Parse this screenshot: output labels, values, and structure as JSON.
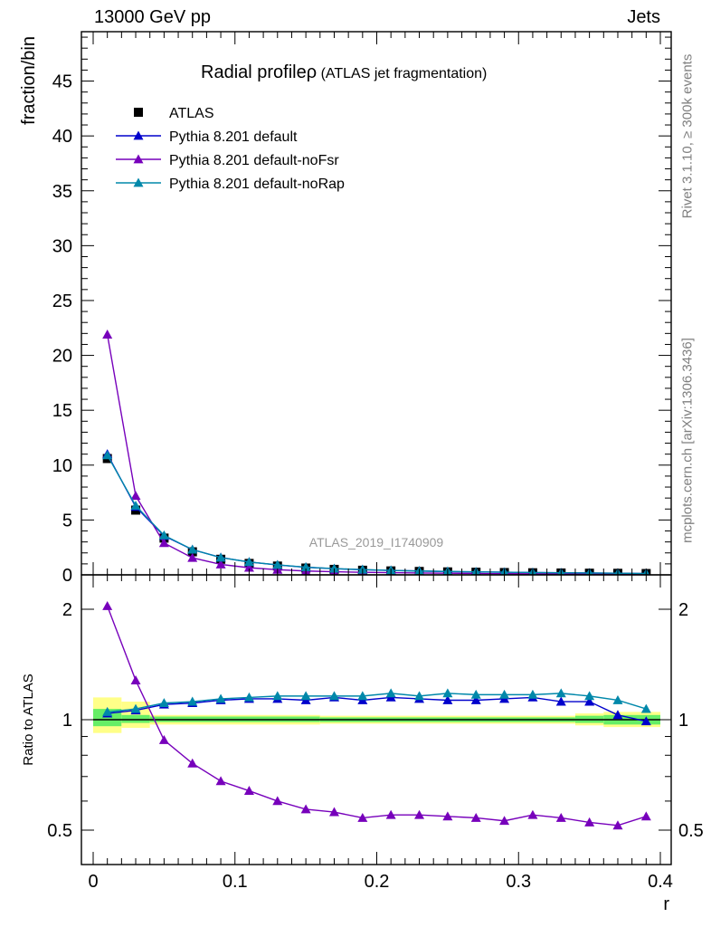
{
  "header": {
    "left": "13000 GeV pp",
    "right": "Jets"
  },
  "side_labels": {
    "top": "Rivet 3.1.10, ≥ 300k events",
    "bottom": "mcplots.cern.ch [arXiv:1306.3436]"
  },
  "chart_data": [
    {
      "type": "line",
      "title": "Radial profile ρ (ATLAS jet fragmentation)",
      "title_main": "Radial profile",
      "title_symbol": "ρ",
      "title_sub": "(ATLAS jet fragmentation)",
      "watermark": "ATLAS_2019_I1740909",
      "ylabel": "fraction/bin",
      "xlabel": "",
      "xlim": [
        -0.01,
        0.4
      ],
      "ylim": [
        0,
        49.5
      ],
      "yticks": [
        0,
        5,
        10,
        15,
        20,
        25,
        30,
        35,
        40,
        45
      ],
      "legend_position": "top-left",
      "x": [
        0.01,
        0.03,
        0.05,
        0.07,
        0.09,
        0.11,
        0.13,
        0.15,
        0.17,
        0.19,
        0.21,
        0.23,
        0.25,
        0.27,
        0.29,
        0.31,
        0.33,
        0.35,
        0.37,
        0.39
      ],
      "series": [
        {
          "name": "ATLAS",
          "color": "#000000",
          "marker": "square",
          "values": [
            10.6,
            5.9,
            3.35,
            2.1,
            1.42,
            1.04,
            0.8,
            0.62,
            0.5,
            0.42,
            0.36,
            0.31,
            0.27,
            0.24,
            0.21,
            0.19,
            0.17,
            0.15,
            0.14,
            0.12
          ]
        },
        {
          "name": "Pythia 8.201 default",
          "color": "#0000cc",
          "marker": "triangle",
          "values": [
            11.0,
            6.2,
            3.55,
            2.3,
            1.58,
            1.17,
            0.9,
            0.69,
            0.56,
            0.47,
            0.4,
            0.35,
            0.3,
            0.27,
            0.24,
            0.21,
            0.19,
            0.17,
            0.15,
            0.12
          ]
        },
        {
          "name": "Pythia 8.201 default-noFsr",
          "color": "#7700bb",
          "marker": "triangle",
          "values": [
            21.9,
            7.2,
            2.9,
            1.55,
            0.95,
            0.65,
            0.47,
            0.35,
            0.28,
            0.23,
            0.2,
            0.17,
            0.15,
            0.13,
            0.11,
            0.1,
            0.09,
            0.08,
            0.07,
            0.065
          ]
        },
        {
          "name": "Pythia 8.201 default-noRap",
          "color": "#0088aa",
          "marker": "triangle",
          "values": [
            10.9,
            6.3,
            3.6,
            2.3,
            1.57,
            1.17,
            0.91,
            0.7,
            0.57,
            0.48,
            0.41,
            0.35,
            0.31,
            0.27,
            0.24,
            0.21,
            0.19,
            0.17,
            0.15,
            0.12
          ]
        }
      ]
    },
    {
      "type": "line",
      "ylabel": "Ratio to ATLAS",
      "xlabel": "r",
      "xlim": [
        -0.01,
        0.4
      ],
      "ylim": [
        0.36,
        2.28
      ],
      "yticks": [
        0.5,
        1,
        2
      ],
      "xticks": [
        0,
        0.1,
        0.2,
        0.3,
        0.4
      ],
      "reference": 1,
      "x": [
        0.01,
        0.03,
        0.05,
        0.07,
        0.09,
        0.11,
        0.13,
        0.15,
        0.17,
        0.19,
        0.21,
        0.23,
        0.25,
        0.27,
        0.29,
        0.31,
        0.33,
        0.35,
        0.37,
        0.39
      ],
      "uncertainty_band": {
        "inner_color": "#66ee66",
        "outer_color": "#ffff88",
        "bins": [
          [
            0.0,
            0.02
          ],
          [
            0.02,
            0.04
          ],
          [
            0.04,
            0.16
          ],
          [
            0.16,
            0.34
          ],
          [
            0.34,
            0.36
          ],
          [
            0.36,
            0.4
          ]
        ],
        "inner": [
          [
            0.96,
            1.07
          ],
          [
            0.98,
            1.03
          ],
          [
            0.985,
            1.02
          ],
          [
            0.985,
            1.015
          ],
          [
            0.98,
            1.025
          ],
          [
            0.97,
            1.03
          ]
        ],
        "outer": [
          [
            0.92,
            1.15
          ],
          [
            0.95,
            1.12
          ],
          [
            0.97,
            1.03
          ],
          [
            0.975,
            1.025
          ],
          [
            0.965,
            1.04
          ],
          [
            0.955,
            1.05
          ]
        ]
      },
      "series": [
        {
          "name": "Pythia 8.201 default",
          "color": "#0000cc",
          "values": [
            1.04,
            1.06,
            1.1,
            1.11,
            1.13,
            1.14,
            1.14,
            1.13,
            1.15,
            1.13,
            1.15,
            1.14,
            1.13,
            1.13,
            1.14,
            1.15,
            1.12,
            1.12,
            1.03,
            0.99
          ]
        },
        {
          "name": "Pythia 8.201 default-noFsr",
          "color": "#7700bb",
          "values": [
            2.04,
            1.28,
            0.88,
            0.76,
            0.68,
            0.64,
            0.6,
            0.57,
            0.56,
            0.54,
            0.55,
            0.55,
            0.545,
            0.54,
            0.53,
            0.55,
            0.54,
            0.525,
            0.515,
            0.545
          ]
        },
        {
          "name": "Pythia 8.201 default-noRap",
          "color": "#0088aa",
          "values": [
            1.05,
            1.07,
            1.11,
            1.12,
            1.14,
            1.15,
            1.16,
            1.16,
            1.16,
            1.16,
            1.18,
            1.16,
            1.18,
            1.17,
            1.17,
            1.17,
            1.18,
            1.16,
            1.13,
            1.07
          ]
        }
      ]
    }
  ]
}
